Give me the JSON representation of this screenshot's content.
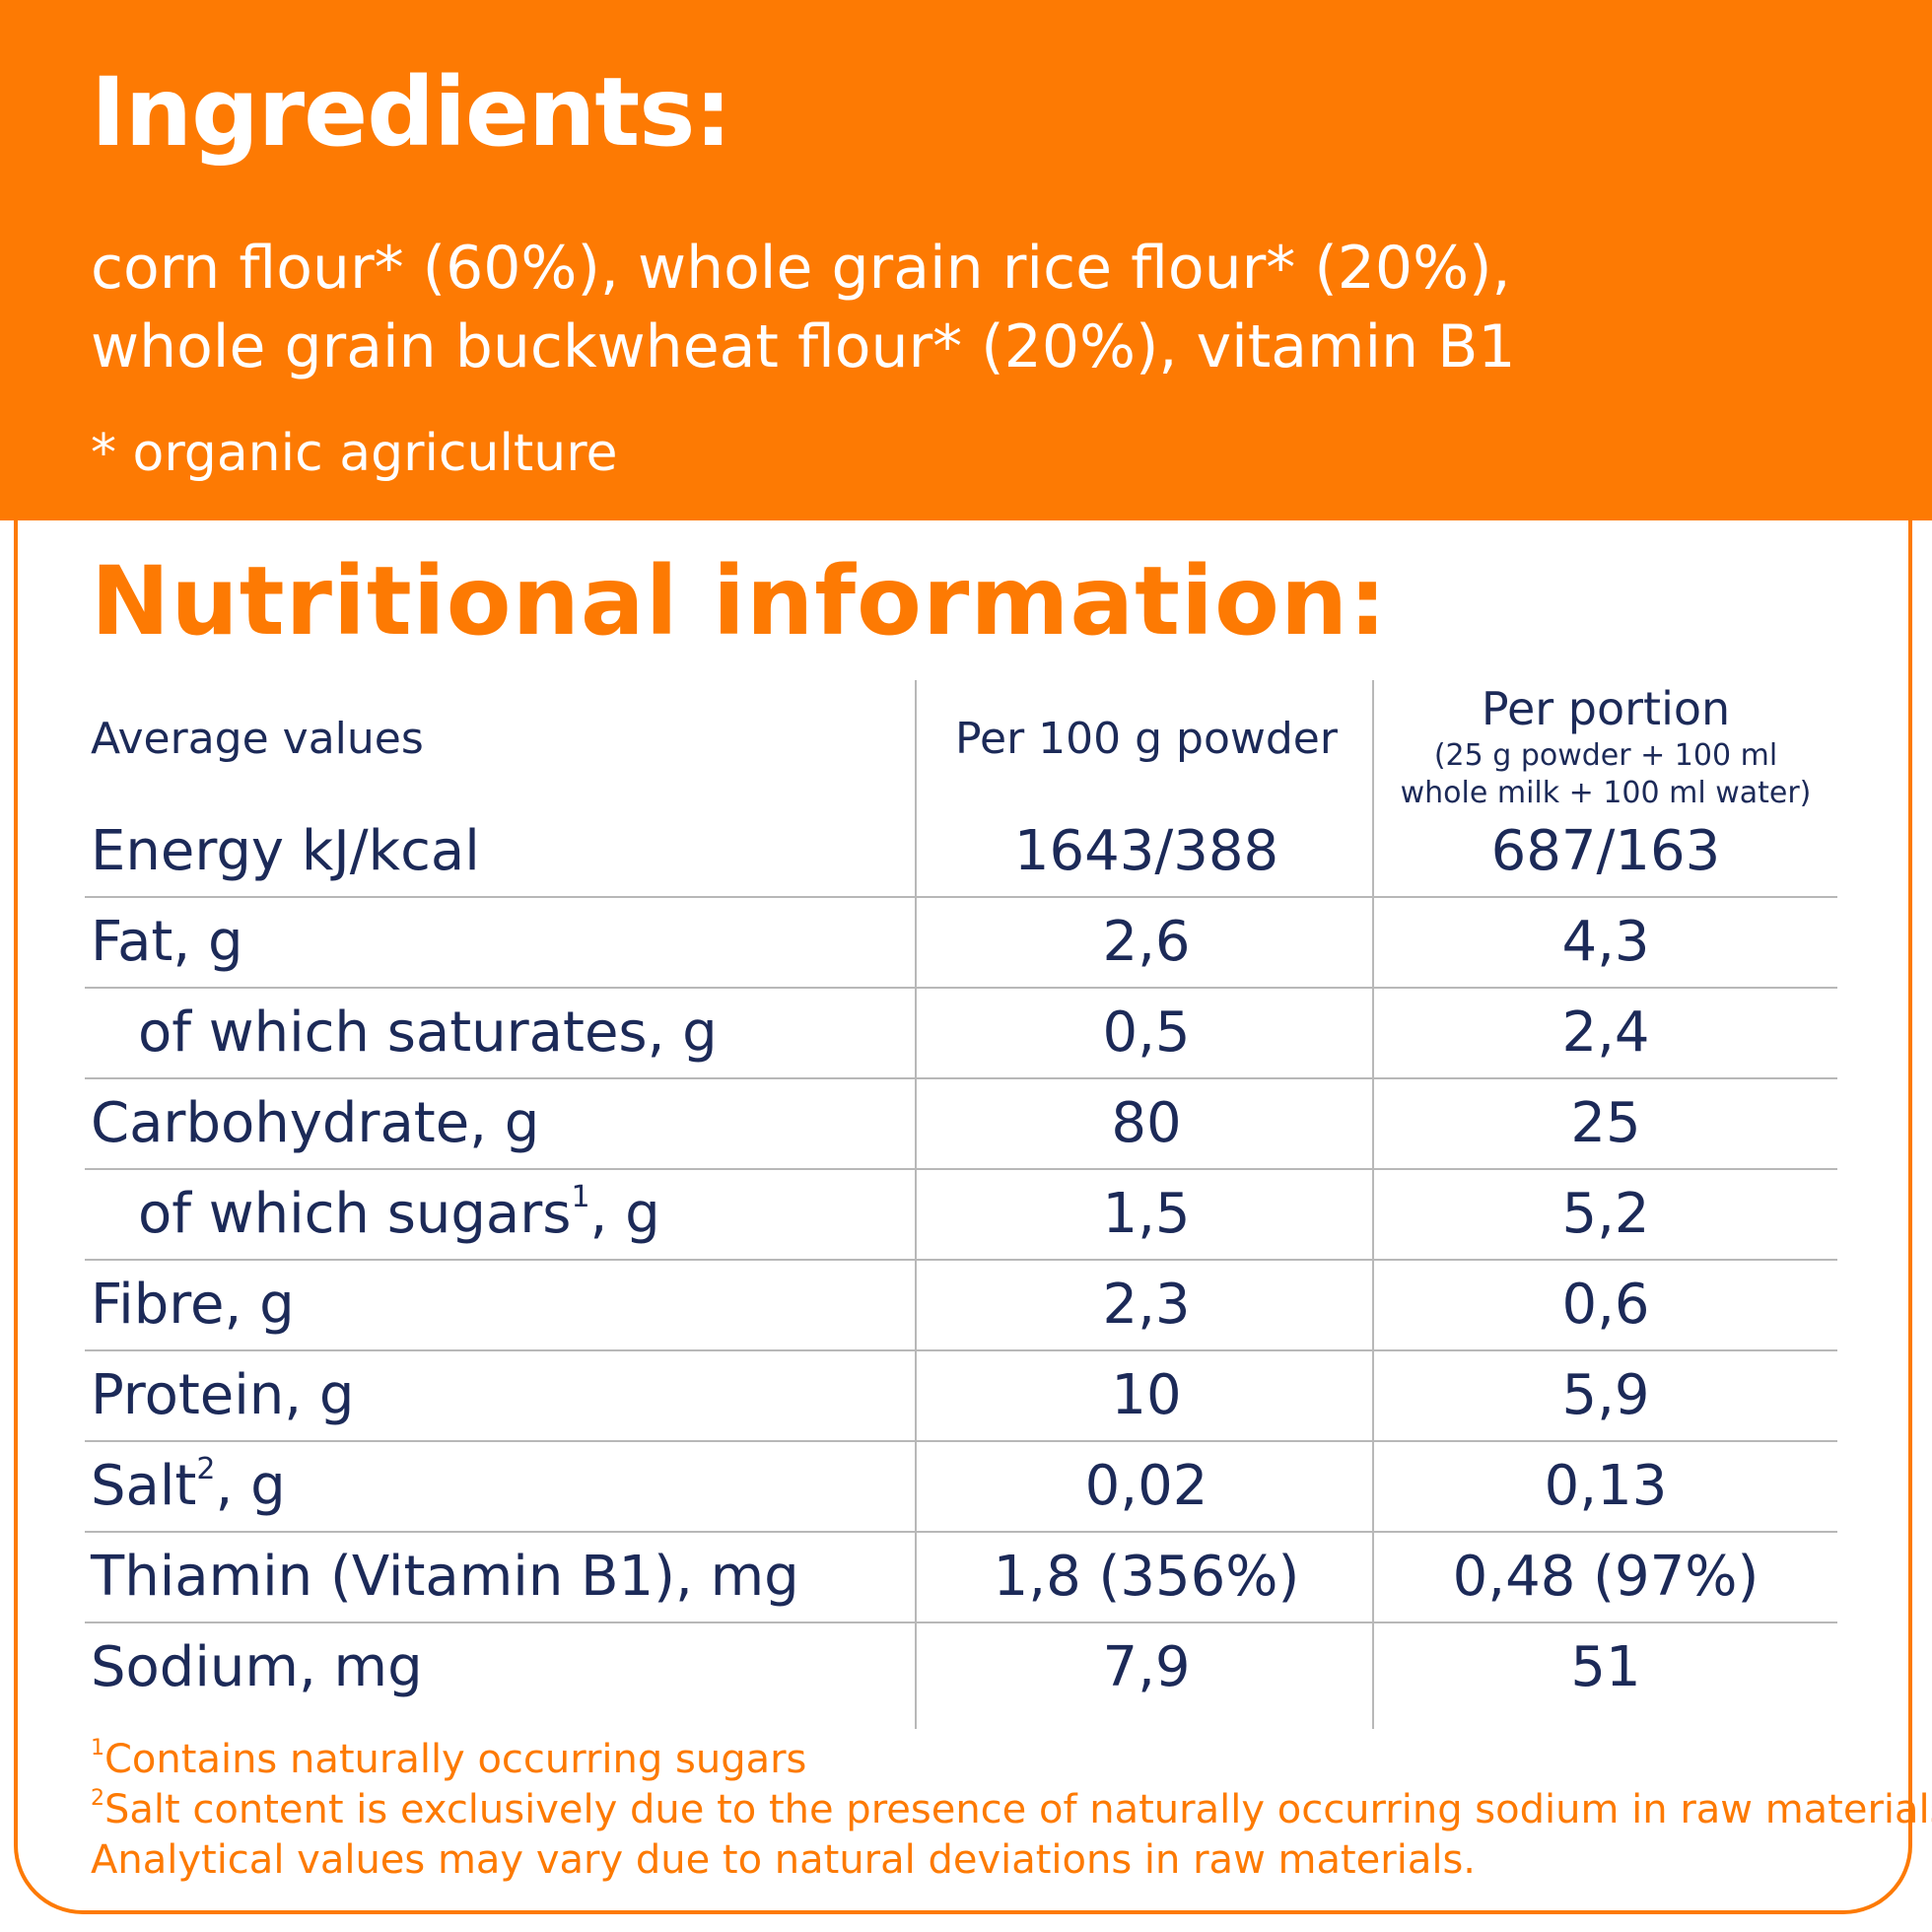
{
  "ingredients": {
    "title": "Ingredients:",
    "line1": "corn flour* (60%), whole grain rice flour* (20%),",
    "line2": "whole grain buckwheat flour* (20%), vitamin B1",
    "note": "* organic agriculture"
  },
  "nutrition": {
    "title": "Nutritional information:",
    "headers": {
      "label": "Average values",
      "col1": "Per 100 g powder",
      "col2_main": "Per portion",
      "col2_sub1": "(25 g powder + 100 ml",
      "col2_sub2": "whole milk + 100 ml water)"
    },
    "rows": [
      {
        "label": "Energy kJ/kcal",
        "sup": "",
        "suffix": "",
        "per100": "1643/388",
        "portion": "687/163"
      },
      {
        "label": "Fat, g",
        "sup": "",
        "suffix": "",
        "per100": "2,6",
        "portion": "4,3"
      },
      {
        "label": "of which saturates, g",
        "sup": "",
        "suffix": "",
        "per100": "0,5",
        "portion": "2,4"
      },
      {
        "label": "Carbohydrate, g",
        "sup": "",
        "suffix": "",
        "per100": "80",
        "portion": "25"
      },
      {
        "label": "of which sugars",
        "sup": "1",
        "suffix": ", g",
        "per100": "1,5",
        "portion": "5,2"
      },
      {
        "label": "Fibre, g",
        "sup": "",
        "suffix": "",
        "per100": "2,3",
        "portion": "0,6"
      },
      {
        "label": "Protein, g",
        "sup": "",
        "suffix": "",
        "per100": "10",
        "portion": "5,9"
      },
      {
        "label": "Salt",
        "sup": "2",
        "suffix": ", g",
        "per100": "0,02",
        "portion": "0,13"
      },
      {
        "label": "Thiamin (Vitamin B1), mg",
        "sup": "",
        "suffix": "",
        "per100": "1,8 (356%)",
        "portion": "0,48 (97%)"
      },
      {
        "label": "Sodium, mg",
        "sup": "",
        "suffix": "",
        "per100": "7,9",
        "portion": "51"
      }
    ]
  },
  "footnotes": {
    "f1_mark": "1",
    "f1_text": "Contains naturally occurring sugars",
    "f2_mark": "2",
    "f2_text": "Salt content is exclusively due to the presence of naturally occurring sodium in raw materials",
    "f3_text": "Analytical values may vary due to natural deviations in raw materials."
  },
  "colors": {
    "accent": "#fd7a03",
    "text": "#1c2a58",
    "rule": "#b8b8b8"
  }
}
